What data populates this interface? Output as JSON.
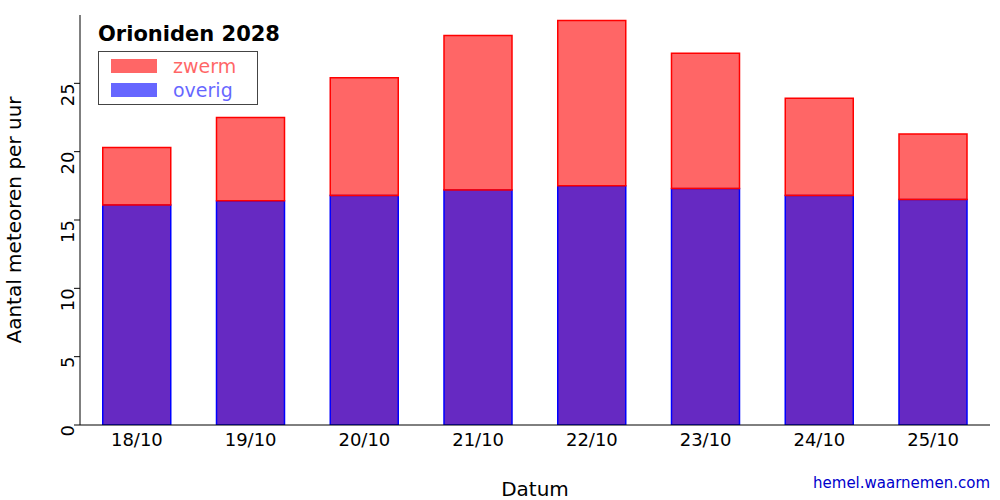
{
  "chart_data": {
    "type": "bar",
    "title": "Orioniden 2028",
    "x_label": "Datum",
    "y_label": "Aantal meteoren per uur",
    "source": "hemel.waarnemen.com",
    "categories": [
      "18/10",
      "19/10",
      "20/10",
      "21/10",
      "22/10",
      "23/10",
      "24/10",
      "25/10"
    ],
    "series": [
      {
        "name": "overig",
        "color": "#0000ff",
        "values": [
          16.1,
          16.4,
          16.8,
          17.2,
          17.5,
          17.3,
          16.8,
          16.5
        ]
      },
      {
        "name": "zwerm",
        "color": "#ff0000",
        "values": [
          4.2,
          6.1,
          8.6,
          11.3,
          12.1,
          9.9,
          7.1,
          4.8
        ]
      }
    ],
    "stacked": true,
    "ylim": [
      0,
      30
    ],
    "yticks": [
      0,
      5,
      10,
      15,
      20,
      25
    ],
    "legend": "upper left"
  }
}
